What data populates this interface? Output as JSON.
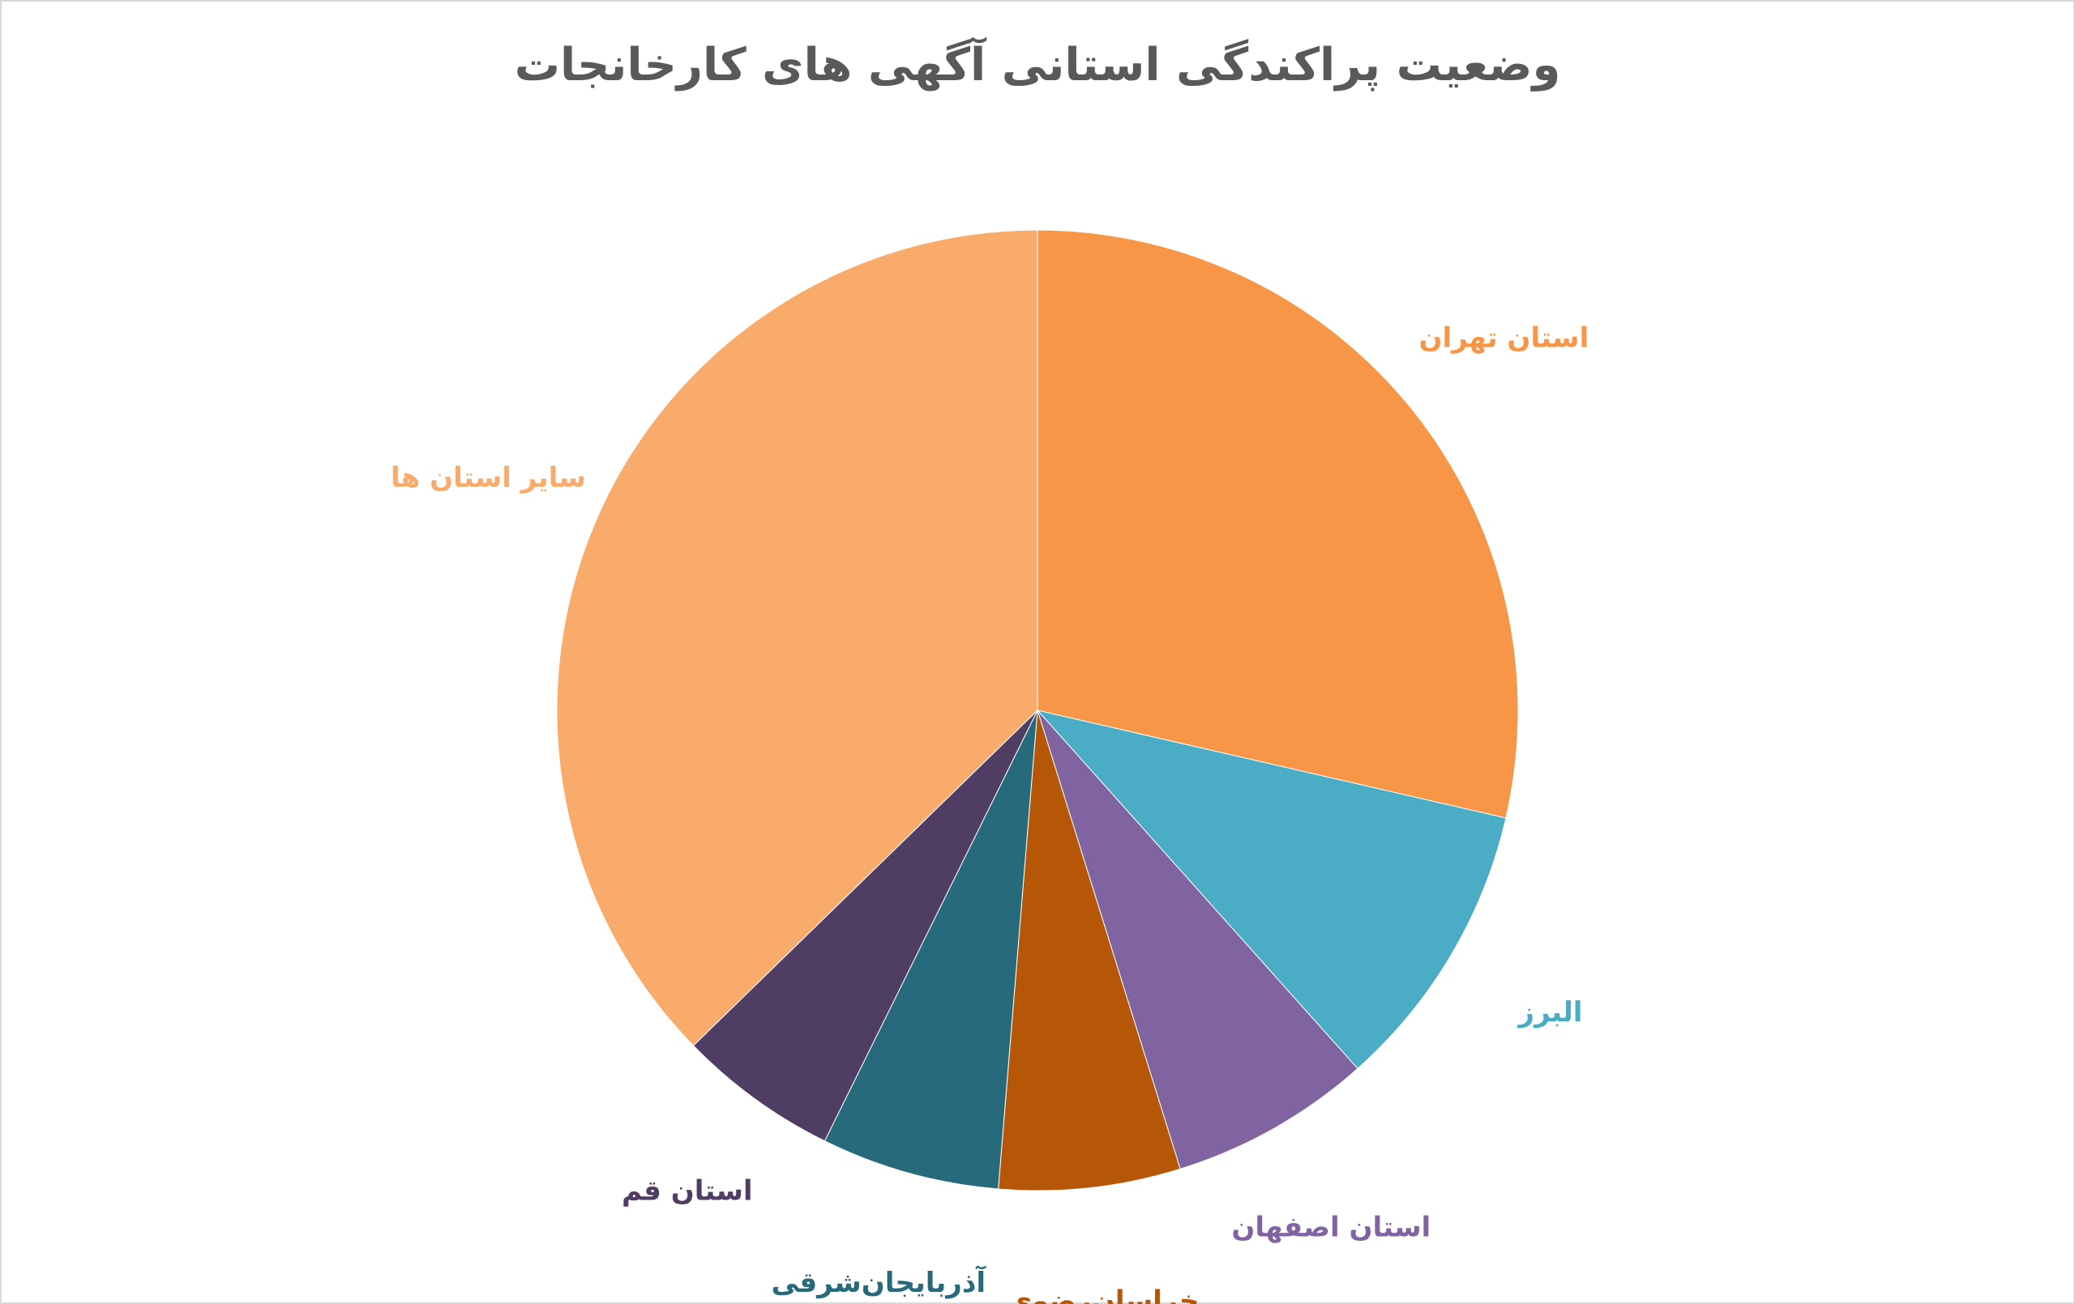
{
  "chart_data": {
    "type": "pie",
    "title": "وضعیت پراکندگی استانی آگهی های کارخانجات",
    "categories": [
      "استان تهران",
      "البرز",
      "استان اصفهان",
      "خراسان‌رضوی",
      "آذربایجان‌شرقی",
      "استان قم",
      "سایر استان ها"
    ],
    "values": [
      28.6,
      9.8,
      6.8,
      6.1,
      6.0,
      5.4,
      37.3
    ],
    "colors": [
      "#f79646",
      "#4bacc6",
      "#8064a2",
      "#b65708",
      "#276a7c",
      "#4f3d63",
      "#f9ab6b"
    ]
  }
}
